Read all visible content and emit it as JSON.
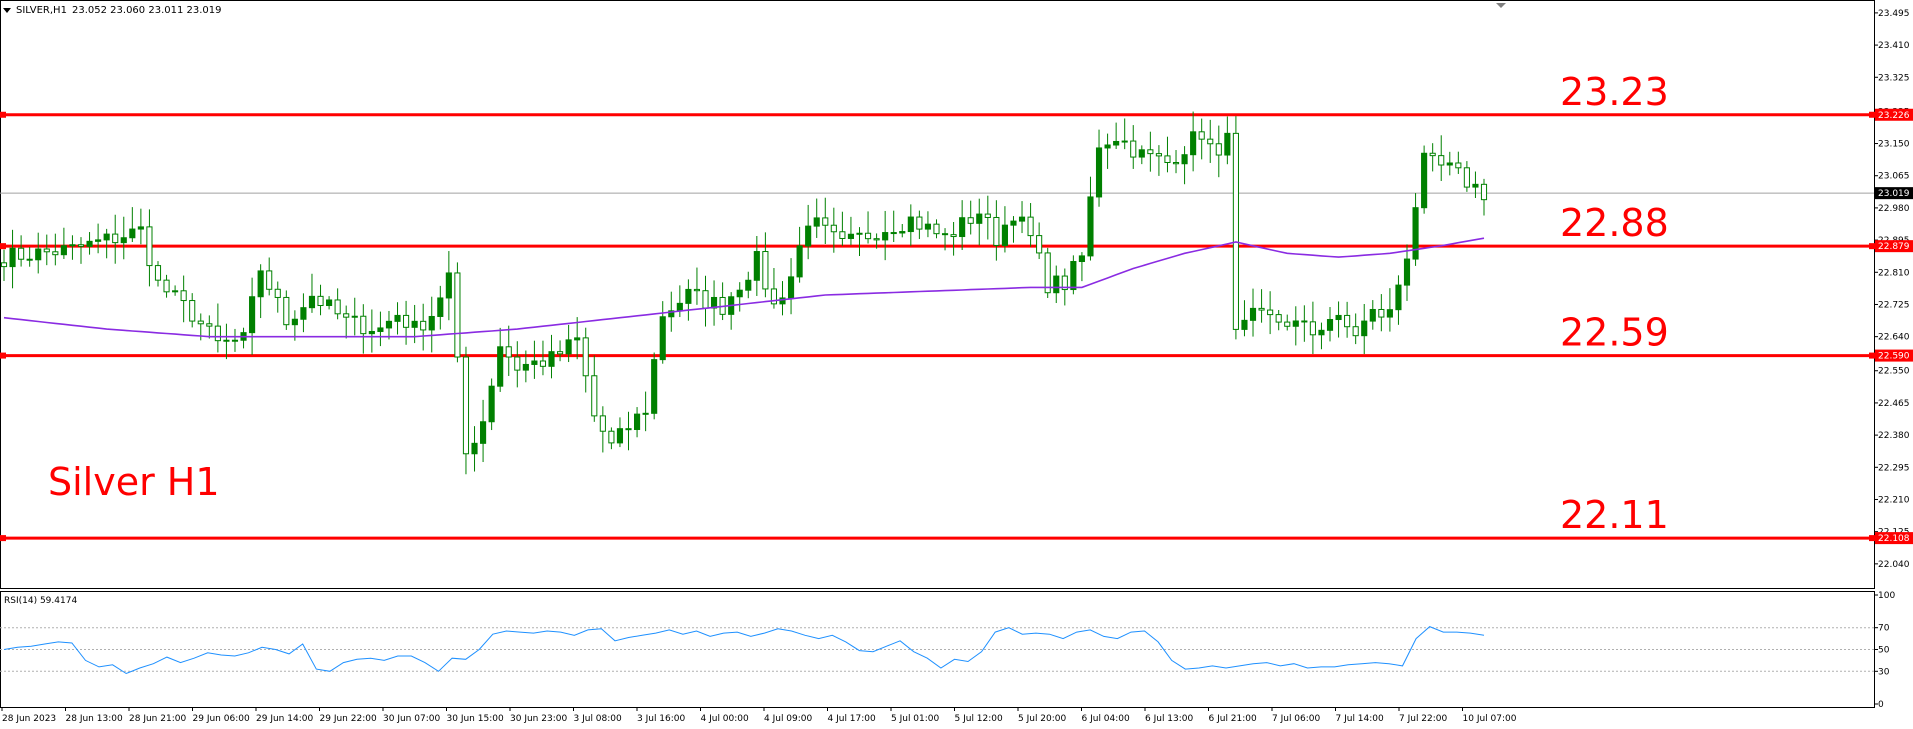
{
  "header": {
    "symbol": "SILVER,H1",
    "ohlc": "23.052 23.060 23.011 23.019"
  },
  "overlay_label": "Silver H1",
  "colors": {
    "bull": "#008000",
    "bear": "#008000",
    "level_line": "#ff0000",
    "level_text": "#ff0000",
    "ma_line": "#8a2be2",
    "rsi_line": "#1e90ff",
    "axis": "#000000",
    "grid_dotted": "#b0b0b0",
    "current_price_bg": "#000000"
  },
  "chart_data": [
    {
      "type": "candlestick",
      "title": "SILVER,H1",
      "ylim": [
        22.0,
        23.5
      ],
      "y_ticks": [
        "23.495",
        "23.410",
        "23.325",
        "23.235",
        "23.150",
        "23.065",
        "22.980",
        "22.895",
        "22.810",
        "22.725",
        "22.640",
        "22.550",
        "22.465",
        "22.380",
        "22.295",
        "22.210",
        "22.125",
        "22.040"
      ],
      "x_tick_labels": [
        "28 Jun 2023",
        "28 Jun 13:00",
        "28 Jun 21:00",
        "29 Jun 06:00",
        "29 Jun 14:00",
        "29 Jun 22:00",
        "30 Jun 07:00",
        "30 Jun 15:00",
        "30 Jun 23:00",
        "3 Jul 08:00",
        "3 Jul 16:00",
        "4 Jul 00:00",
        "4 Jul 09:00",
        "4 Jul 17:00",
        "5 Jul 01:00",
        "5 Jul 12:00",
        "5 Jul 20:00",
        "6 Jul 04:00",
        "6 Jul 13:00",
        "6 Jul 21:00",
        "7 Jul 06:00",
        "7 Jul 14:00",
        "7 Jul 22:00",
        "10 Jul 07:00"
      ],
      "current_price": "23.019",
      "levels": [
        {
          "value": 23.226,
          "label": "23.23",
          "axis_tag": "23.226"
        },
        {
          "value": 22.879,
          "label": "22.88",
          "axis_tag": "22.879"
        },
        {
          "value": 22.59,
          "label": "22.59",
          "axis_tag": "22.590"
        },
        {
          "value": 22.108,
          "label": "22.11",
          "axis_tag": "22.108"
        }
      ],
      "close_path": [
        [
          0,
          22.85
        ],
        [
          8,
          22.87
        ],
        [
          16,
          22.92
        ],
        [
          18,
          22.78
        ],
        [
          22,
          22.7
        ],
        [
          25,
          22.62
        ],
        [
          28,
          22.63
        ],
        [
          30,
          22.82
        ],
        [
          33,
          22.68
        ],
        [
          36,
          22.75
        ],
        [
          40,
          22.68
        ],
        [
          44,
          22.66
        ],
        [
          46,
          22.7
        ],
        [
          48,
          22.66
        ],
        [
          50,
          22.7
        ],
        [
          52,
          22.8
        ],
        [
          54,
          22.33
        ],
        [
          56,
          22.42
        ],
        [
          58,
          22.62
        ],
        [
          60,
          22.56
        ],
        [
          64,
          22.58
        ],
        [
          67,
          22.63
        ],
        [
          69,
          22.43
        ],
        [
          71,
          22.35
        ],
        [
          75,
          22.45
        ],
        [
          77,
          22.7
        ],
        [
          80,
          22.75
        ],
        [
          84,
          22.72
        ],
        [
          86,
          22.78
        ],
        [
          88,
          22.84
        ],
        [
          90,
          22.72
        ],
        [
          92,
          22.8
        ],
        [
          94,
          22.95
        ],
        [
          98,
          22.88
        ],
        [
          102,
          22.92
        ],
        [
          106,
          22.95
        ],
        [
          110,
          22.9
        ],
        [
          114,
          22.97
        ],
        [
          116,
          22.9
        ],
        [
          118,
          22.97
        ],
        [
          120,
          22.9
        ],
        [
          122,
          22.78
        ],
        [
          124,
          22.78
        ],
        [
          126,
          22.85
        ],
        [
          128,
          23.15
        ],
        [
          130,
          23.17
        ],
        [
          133,
          23.12
        ],
        [
          136,
          23.1
        ],
        [
          138,
          23.14
        ],
        [
          140,
          23.18
        ],
        [
          142,
          23.1
        ],
        [
          143,
          23.2
        ],
        [
          144,
          22.64
        ],
        [
          146,
          22.69
        ],
        [
          150,
          22.68
        ],
        [
          153,
          22.65
        ],
        [
          155,
          22.69
        ],
        [
          158,
          22.65
        ],
        [
          160,
          22.7
        ],
        [
          162,
          22.7
        ],
        [
          164,
          22.86
        ],
        [
          165,
          22.99
        ],
        [
          166,
          23.1
        ],
        [
          169,
          23.08
        ],
        [
          171,
          23.05
        ],
        [
          173,
          23.02
        ]
      ],
      "ma_path": [
        [
          0,
          22.69
        ],
        [
          12,
          22.66
        ],
        [
          24,
          22.64
        ],
        [
          36,
          22.64
        ],
        [
          48,
          22.64
        ],
        [
          60,
          22.66
        ],
        [
          72,
          22.69
        ],
        [
          84,
          22.72
        ],
        [
          96,
          22.75
        ],
        [
          108,
          22.76
        ],
        [
          120,
          22.77
        ],
        [
          126,
          22.77
        ],
        [
          132,
          22.82
        ],
        [
          138,
          22.86
        ],
        [
          144,
          22.89
        ],
        [
          150,
          22.86
        ],
        [
          156,
          22.85
        ],
        [
          162,
          22.86
        ],
        [
          168,
          22.88
        ],
        [
          173,
          22.9
        ]
      ],
      "n_bars": 174
    },
    {
      "type": "line",
      "title": "RSI(14) 59.4174",
      "ylim": [
        0,
        100
      ],
      "y_ticks": [
        "100",
        "70",
        "50",
        "30",
        "0"
      ],
      "levels": [
        70,
        50,
        30
      ],
      "series": [
        {
          "name": "RSI(14)",
          "values": [
            50,
            52,
            53,
            55,
            57,
            56,
            40,
            34,
            36,
            28,
            33,
            37,
            43,
            38,
            42,
            47,
            45,
            44,
            47,
            52,
            50,
            46,
            55,
            32,
            30,
            38,
            41,
            42,
            40,
            44,
            44,
            38,
            30,
            42,
            41,
            50,
            64,
            67,
            66,
            65,
            67,
            66,
            63,
            68,
            69,
            58,
            61,
            63,
            65,
            68,
            64,
            67,
            62,
            65,
            66,
            62,
            65,
            69,
            67,
            63,
            60,
            63,
            57,
            49,
            48,
            53,
            58,
            48,
            42,
            33,
            41,
            39,
            48,
            66,
            70,
            64,
            65,
            64,
            60,
            66,
            68,
            62,
            60,
            66,
            67,
            57,
            40,
            32,
            33,
            35,
            33,
            35,
            37,
            38,
            35,
            37,
            33,
            34,
            34,
            36,
            37,
            38,
            37,
            35,
            60,
            71,
            66,
            66,
            65,
            63
          ]
        }
      ]
    }
  ]
}
